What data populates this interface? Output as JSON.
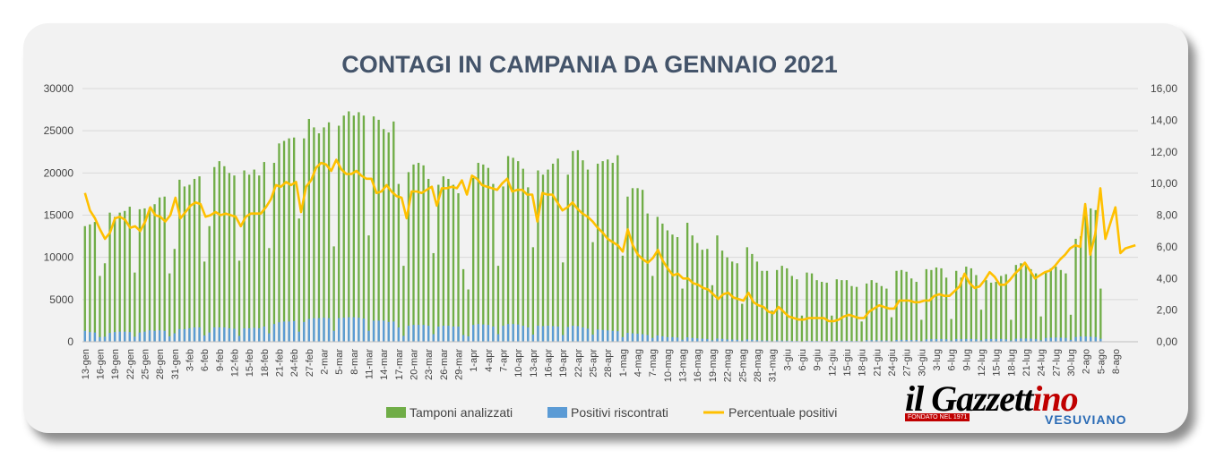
{
  "chart_data": {
    "type": "bar",
    "title": "CONTAGI IN CAMPANIA DA GENNAIO 2021",
    "y_left": {
      "ylim": [
        0,
        30000
      ],
      "ticks": [
        "0",
        "5000",
        "10000",
        "15000",
        "20000",
        "25000",
        "30000"
      ]
    },
    "y_right": {
      "ylim": [
        0,
        16
      ],
      "ticks": [
        "0,00",
        "2,00",
        "4,00",
        "6,00",
        "8,00",
        "10,00",
        "12,00",
        "14,00",
        "16,00"
      ]
    },
    "x_tick_labels": [
      "13-gen",
      "16-gen",
      "19-gen",
      "22-gen",
      "25-gen",
      "28-gen",
      "31-gen",
      "3-feb",
      "6-feb",
      "9-feb",
      "12-feb",
      "15-feb",
      "18-feb",
      "21-feb",
      "24-feb",
      "27-feb",
      "2-mar",
      "5-mar",
      "8-mar",
      "11-mar",
      "14-mar",
      "17-mar",
      "20-mar",
      "23-mar",
      "26-mar",
      "29-mar",
      "1-apr",
      "4-apr",
      "7-apr",
      "10-apr",
      "13-apr",
      "16-apr",
      "19-apr",
      "22-apr",
      "25-apr",
      "28-apr",
      "1-mag",
      "4-mag",
      "7-mag",
      "10-mag",
      "13-mag",
      "16-mag",
      "19-mag",
      "22-mag",
      "25-mag",
      "28-mag",
      "31-mag",
      "3-giu",
      "6-giu",
      "9-giu",
      "12-giu",
      "15-giu",
      "18-giu",
      "21-giu",
      "24-giu",
      "27-giu",
      "30-giu",
      "3-lug",
      "6-lug",
      "9-lug",
      "12-lug",
      "15-lug",
      "18-lug",
      "21-lug",
      "24-lug",
      "27-lug",
      "30-lug",
      "2-ago",
      "5-ago",
      "8-ago"
    ],
    "tick_start_day": 0,
    "days_per_tick": 3,
    "n_days": 212,
    "grid": true,
    "legend_position": "bottom",
    "series": [
      {
        "name": "Tamponi analizzati",
        "type": "bar",
        "axis": "left",
        "color": "#70ad47",
        "values": [
          13700,
          13900,
          14200,
          7800,
          9300,
          15300,
          14800,
          15300,
          15500,
          16000,
          8200,
          15700,
          15800,
          15900,
          16300,
          17100,
          17200,
          8100,
          11000,
          19200,
          18400,
          18600,
          19300,
          19600,
          9500,
          13700,
          20700,
          21400,
          20800,
          20000,
          19700,
          9600,
          20300,
          19800,
          20400,
          19700,
          21300,
          11100,
          21200,
          23500,
          23800,
          24100,
          24200,
          14600,
          24100,
          26400,
          25400,
          24700,
          25400,
          26000,
          11300,
          25600,
          26800,
          27300,
          26800,
          27200,
          26800,
          12600,
          26700,
          26300,
          25200,
          24800,
          26100,
          18700,
          9000,
          20100,
          21000,
          21200,
          20900,
          19300,
          10500,
          18600,
          19600,
          19300,
          18600,
          17600,
          8600,
          6200,
          19400,
          21200,
          21000,
          20600,
          18700,
          9000,
          18400,
          22000,
          21800,
          21400,
          20500,
          18300,
          11200,
          20300,
          19800,
          20400,
          21100,
          21700,
          9400,
          19800,
          22600,
          22700,
          21500,
          20400,
          11800,
          21100,
          21400,
          21600,
          21200,
          22100,
          10200,
          17200,
          18200,
          18200,
          18000,
          15200,
          7800,
          14800,
          14000,
          13200,
          12700,
          12400,
          6300,
          14100,
          12600,
          11700,
          10900,
          11000,
          6700,
          12600,
          10800,
          10000,
          9500,
          9300,
          4500,
          11200,
          10400,
          9500,
          8400,
          8400,
          3700,
          8500,
          9000,
          8700,
          7800,
          7400,
          3100,
          8200,
          8100,
          7300,
          7100,
          7000,
          3100,
          7400,
          7300,
          7300,
          6600,
          6500,
          2400,
          6900,
          7300,
          7000,
          6600,
          6300,
          2900,
          8400,
          8500,
          8300,
          7500,
          7100,
          2600,
          8600,
          8500,
          8800,
          8700,
          7600,
          2700,
          8400,
          7600,
          8900,
          8700,
          7900,
          3800,
          7300,
          7000,
          7100,
          7800,
          8000,
          2600,
          9100,
          9300,
          9200,
          8600,
          8100,
          3000,
          8200,
          8700,
          8900,
          8500,
          8100,
          3200,
          12200,
          12500,
          15900,
          15800,
          15600,
          6300
        ],
        "sample_note": ""
      },
      {
        "name": "Positivi riscontrati",
        "type": "bar",
        "axis": "left",
        "color": "#5b9bd5",
        "values": [
          1300,
          1150,
          1100,
          550,
          600,
          1050,
          1150,
          1200,
          1200,
          1150,
          600,
          1100,
          1200,
          1350,
          1300,
          1350,
          1300,
          650,
          1000,
          1500,
          1500,
          1600,
          1700,
          1700,
          750,
          1100,
          1700,
          1700,
          1700,
          1600,
          1550,
          700,
          1600,
          1600,
          1650,
          1600,
          1800,
          1000,
          2100,
          2300,
          2400,
          2400,
          2450,
          1200,
          2350,
          2700,
          2800,
          2800,
          2850,
          2800,
          1300,
          2800,
          2850,
          2900,
          2900,
          2850,
          2750,
          1300,
          2500,
          2500,
          2500,
          2350,
          2400,
          1700,
          700,
          1900,
          2000,
          2000,
          2000,
          1900,
          900,
          1800,
          1900,
          1900,
          1800,
          1800,
          800,
          650,
          2000,
          2100,
          2050,
          2000,
          1800,
          900,
          1900,
          2100,
          2100,
          2050,
          1900,
          1700,
          850,
          1900,
          1850,
          1900,
          1850,
          1800,
          800,
          1750,
          1900,
          1850,
          1700,
          1550,
          850,
          1450,
          1400,
          1350,
          1300,
          1250,
          550,
          1050,
          1000,
          950,
          900,
          800,
          450,
          750,
          650,
          550,
          550,
          500,
          250,
          520,
          450,
          400,
          360,
          330,
          180,
          380,
          340,
          280,
          260,
          240,
          140,
          280,
          240,
          190,
          160,
          150,
          80,
          160,
          140,
          130,
          110,
          100,
          55,
          120,
          110,
          110,
          90,
          90,
          45,
          120,
          130,
          120,
          100,
          100,
          60,
          180,
          190,
          180,
          160,
          150,
          70,
          220,
          230,
          220,
          200,
          200,
          90,
          280,
          300,
          320,
          310,
          300,
          150,
          330,
          300,
          330,
          330,
          300,
          170,
          330,
          320,
          330,
          330,
          300,
          150,
          360,
          380,
          380,
          360,
          340,
          170,
          450,
          480,
          500,
          480,
          460,
          230,
          560,
          620,
          620,
          590,
          560,
          350
        ]
      },
      {
        "name": "Percentuale positivi",
        "type": "line",
        "axis": "right",
        "color": "#ffc000",
        "values": [
          9.4,
          8.3,
          7.8,
          7.1,
          6.5,
          6.9,
          7.8,
          7.9,
          7.7,
          7.2,
          7.3,
          7.0,
          7.6,
          8.5,
          8.0,
          7.9,
          7.6,
          8.0,
          9.1,
          7.8,
          8.2,
          8.6,
          8.8,
          8.7,
          7.9,
          8.0,
          8.2,
          8.0,
          8.1,
          8.0,
          7.9,
          7.3,
          7.9,
          8.1,
          8.1,
          8.1,
          8.5,
          9.0,
          9.9,
          9.8,
          10.1,
          9.9,
          10.1,
          8.2,
          9.8,
          10.2,
          11.0,
          11.3,
          11.2,
          10.8,
          11.5,
          10.9,
          10.6,
          10.6,
          10.8,
          10.5,
          10.3,
          10.3,
          9.4,
          9.5,
          9.9,
          9.5,
          9.2,
          9.1,
          7.8,
          9.5,
          9.5,
          9.4,
          9.6,
          9.8,
          8.6,
          9.7,
          9.7,
          9.8,
          9.7,
          10.2,
          9.3,
          10.5,
          10.3,
          9.9,
          9.8,
          9.7,
          9.6,
          10.0,
          10.3,
          9.5,
          9.6,
          9.6,
          9.3,
          9.3,
          7.6,
          9.4,
          9.3,
          9.3,
          8.8,
          8.3,
          8.5,
          8.8,
          8.4,
          8.1,
          7.9,
          7.6,
          7.2,
          6.9,
          6.5,
          6.3,
          6.1,
          5.7,
          7.1,
          6.1,
          5.5,
          5.2,
          5.0,
          5.3,
          5.8,
          5.1,
          4.6,
          4.2,
          4.3,
          4.0,
          4.0,
          3.7,
          3.6,
          3.4,
          3.3,
          3.0,
          2.7,
          3.0,
          3.1,
          2.8,
          2.7,
          2.6,
          3.1,
          2.5,
          2.3,
          2.2,
          1.9,
          1.8,
          2.2,
          1.9,
          1.6,
          1.5,
          1.4,
          1.4,
          1.5,
          1.5,
          1.5,
          1.5,
          1.3,
          1.3,
          1.4,
          1.6,
          1.7,
          1.6,
          1.5,
          1.5,
          1.9,
          2.1,
          2.3,
          2.2,
          2.1,
          2.1,
          2.6,
          2.6,
          2.6,
          2.5,
          2.5,
          2.6,
          2.6,
          2.9,
          3.0,
          2.9,
          2.9,
          3.2,
          3.5,
          4.3,
          3.7,
          3.4,
          3.5,
          3.9,
          4.4,
          4.1,
          3.6,
          3.6,
          3.9,
          4.3,
          4.6,
          5.0,
          4.5,
          4.0,
          4.2,
          4.4,
          4.5,
          4.8,
          5.2,
          5.5,
          5.9,
          6.1,
          6.0,
          8.7,
          5.5,
          6.8,
          9.7,
          6.5,
          7.5,
          8.5,
          5.6,
          5.9,
          6.0,
          6.1
        ]
      }
    ]
  },
  "logo": {
    "main_black": "il Gazzett",
    "main_red": "ino",
    "tagline": "FONDATO NEL 1971",
    "sub": "VESUVIANO"
  }
}
